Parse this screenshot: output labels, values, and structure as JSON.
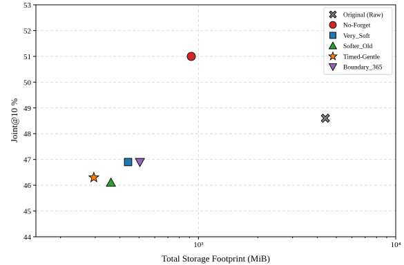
{
  "chart_data": {
    "type": "scatter",
    "xlabel": "Total Storage Footprint (MiB)",
    "ylabel": "Joint@10 %",
    "xscale": "log",
    "xlim": [
      150,
      10000
    ],
    "ylim": [
      44,
      53
    ],
    "x_ticks": [
      1000,
      10000
    ],
    "x_tick_labels": [
      "10³",
      "10⁴"
    ],
    "y_ticks": [
      44,
      45,
      46,
      47,
      48,
      49,
      50,
      51,
      52,
      53
    ],
    "grid": true,
    "legend_position": "top-right",
    "series": [
      {
        "name": "Original (Raw)",
        "marker": "x-cross",
        "color": "#808080",
        "x": 4400,
        "y": 48.6
      },
      {
        "name": "No-Forget",
        "marker": "circle",
        "color": "#d62728",
        "x": 920,
        "y": 51.0
      },
      {
        "name": "Very_Soft",
        "marker": "square",
        "color": "#1f77b4",
        "x": 440,
        "y": 46.9
      },
      {
        "name": "Softer_Old",
        "marker": "triangle-up",
        "color": "#2ca02c",
        "x": 360,
        "y": 46.1
      },
      {
        "name": "Timed-Gentle",
        "marker": "star",
        "color": "#ff7f0e",
        "x": 295,
        "y": 46.3
      },
      {
        "name": "Boundary_365",
        "marker": "triangle-down",
        "color": "#9467bd",
        "x": 505,
        "y": 46.9
      }
    ]
  }
}
